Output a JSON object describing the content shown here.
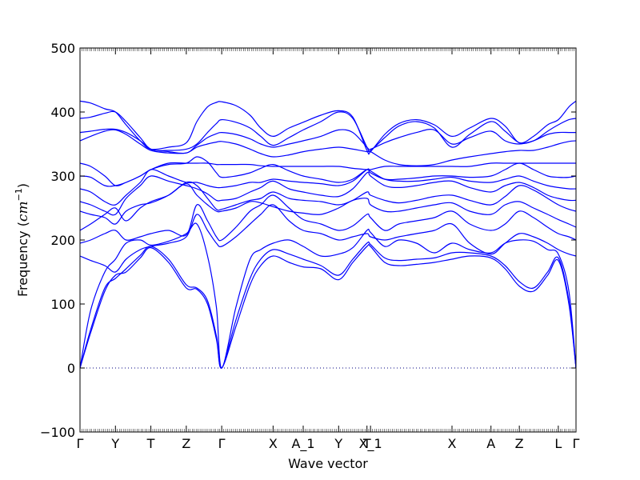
{
  "chart_data": {
    "type": "line",
    "title": "",
    "xlabel": "Wave vector",
    "ylabel_prefix": "Frequency (",
    "ylabel_unit_base": "cm",
    "ylabel_unit_exp": "−1",
    "ylabel_suffix": ")",
    "ylim": [
      -100,
      500
    ],
    "yticks": [
      -100,
      0,
      100,
      200,
      300,
      400,
      500
    ],
    "yticklabels": [
      "−100",
      "0",
      "100",
      "200",
      "300",
      "400",
      "500"
    ],
    "xlim": [
      0,
      14
    ],
    "xticks": [
      {
        "x": 0,
        "label": "Γ"
      },
      {
        "x": 1,
        "label": "Y"
      },
      {
        "x": 2,
        "label": "T"
      },
      {
        "x": 3,
        "label": "Z"
      },
      {
        "x": 4,
        "label": "Γ"
      },
      {
        "x": 5.45,
        "label": "X"
      },
      {
        "x": 6.3,
        "label": "A_1"
      },
      {
        "x": 7.3,
        "label": "Y"
      },
      {
        "x": 8.1,
        "label": "T"
      },
      {
        "x": 8.2,
        "label": "X_1"
      },
      {
        "x": 10.5,
        "label": "X"
      },
      {
        "x": 11.6,
        "label": "A"
      },
      {
        "x": 12.4,
        "label": "Z"
      },
      {
        "x": 13.5,
        "label": "L"
      },
      {
        "x": 14,
        "label": "Γ"
      }
    ],
    "zero_line": true,
    "line_color": "#0000ff",
    "zero_line_color": "#000080",
    "series": [
      {
        "x": [
          0,
          0.3,
          0.7,
          1.0,
          1.3,
          1.7,
          2.0,
          2.5,
          3.0,
          3.3,
          3.6,
          3.85,
          4.0,
          4.4,
          4.8,
          5.1,
          5.45,
          5.9,
          6.3,
          6.8,
          7.3,
          7.7,
          8.1,
          8.2,
          8.6,
          9.0,
          9.5,
          10.0,
          10.5,
          11.0,
          11.6,
          12.0,
          12.4,
          12.8,
          13.2,
          13.5,
          13.8,
          14.0
        ],
        "values": [
          0,
          55,
          120,
          145,
          150,
          172,
          188,
          165,
          125,
          123,
          100,
          45,
          0,
          65,
          130,
          160,
          175,
          165,
          158,
          155,
          138,
          165,
          190,
          190,
          165,
          160,
          162,
          165,
          170,
          175,
          172,
          155,
          128,
          120,
          145,
          168,
          100,
          0
        ]
      },
      {
        "x": [
          0,
          0.3,
          0.7,
          1.0,
          1.3,
          1.7,
          2.0,
          2.5,
          3.0,
          3.3,
          3.6,
          3.85,
          4.0,
          4.4,
          4.8,
          5.1,
          5.45,
          5.9,
          6.3,
          6.8,
          7.3,
          7.7,
          8.1,
          8.2,
          8.6,
          9.0,
          9.5,
          10.0,
          10.5,
          11.0,
          11.6,
          12.0,
          12.4,
          12.8,
          13.2,
          13.5,
          13.8,
          14.0
        ],
        "values": [
          0,
          60,
          125,
          140,
          155,
          176,
          190,
          170,
          130,
          125,
          105,
          50,
          0,
          75,
          140,
          170,
          185,
          178,
          170,
          160,
          145,
          170,
          195,
          193,
          172,
          168,
          170,
          172,
          180,
          180,
          175,
          160,
          135,
          125,
          150,
          172,
          105,
          0
        ]
      },
      {
        "x": [
          0,
          0.3,
          0.7,
          1.0,
          1.3,
          1.7,
          2.0,
          2.5,
          3.0,
          3.3,
          3.6,
          3.85,
          4.0,
          4.4,
          4.8,
          5.1,
          5.45,
          5.9,
          6.3,
          6.8,
          7.3,
          7.7,
          8.1,
          8.2,
          8.6,
          9.0,
          9.5,
          10.0,
          10.5,
          11.0,
          11.6,
          12.0,
          12.4,
          12.8,
          13.2,
          13.5,
          13.8,
          14.0
        ],
        "values": [
          0,
          90,
          150,
          170,
          195,
          200,
          192,
          198,
          210,
          225,
          175,
          95,
          0,
          95,
          170,
          185,
          195,
          200,
          190,
          175,
          178,
          188,
          215,
          212,
          190,
          200,
          195,
          180,
          195,
          185,
          180,
          195,
          200,
          198,
          185,
          178,
          120,
          0
        ]
      },
      {
        "x": [
          0,
          0.3,
          0.7,
          1.0,
          1.3,
          1.7,
          2.0,
          2.5,
          3.0,
          3.3,
          3.6,
          3.85,
          4.0,
          4.4,
          4.8,
          5.1,
          5.45,
          5.9,
          6.3,
          6.8,
          7.3,
          7.7,
          8.1,
          8.2,
          8.6,
          9.0,
          9.5,
          10.0,
          10.5,
          11.0,
          11.6,
          12.0,
          12.4,
          12.8,
          13.2,
          13.5,
          13.8,
          14.0
        ],
        "values": [
          175,
          168,
          160,
          150,
          170,
          185,
          190,
          195,
          205,
          240,
          215,
          195,
          190,
          205,
          225,
          240,
          255,
          230,
          215,
          210,
          200,
          205,
          210,
          205,
          200,
          205,
          210,
          215,
          225,
          195,
          178,
          195,
          210,
          205,
          195,
          185,
          178,
          175
        ]
      },
      {
        "x": [
          0,
          0.3,
          0.7,
          1.0,
          1.3,
          1.7,
          2.0,
          2.5,
          3.0,
          3.3,
          3.6,
          3.85,
          4.0,
          4.4,
          4.8,
          5.1,
          5.45,
          5.9,
          6.3,
          6.8,
          7.3,
          7.7,
          8.1,
          8.2,
          8.6,
          9.0,
          9.5,
          10.0,
          10.5,
          11.0,
          11.6,
          12.0,
          12.4,
          12.8,
          13.2,
          13.5,
          13.8,
          14.0
        ],
        "values": [
          195,
          200,
          210,
          215,
          200,
          205,
          210,
          215,
          208,
          255,
          230,
          205,
          200,
          220,
          245,
          255,
          270,
          250,
          232,
          225,
          215,
          222,
          240,
          235,
          215,
          225,
          230,
          235,
          245,
          225,
          215,
          225,
          245,
          235,
          220,
          210,
          205,
          200
        ]
      },
      {
        "x": [
          0,
          0.3,
          0.7,
          1.0,
          1.3,
          1.7,
          2.0,
          2.5,
          3.0,
          3.3,
          3.6,
          3.85,
          4.0,
          4.4,
          4.8,
          5.1,
          5.45,
          5.9,
          6.3,
          6.8,
          7.3,
          7.7,
          8.1,
          8.2,
          8.6,
          9.0,
          9.5,
          10.0,
          10.5,
          11.0,
          11.6,
          12.0,
          12.4,
          12.8,
          13.2,
          13.5,
          13.8,
          14.0
        ],
        "values": [
          215,
          225,
          240,
          250,
          230,
          250,
          260,
          270,
          288,
          270,
          255,
          245,
          245,
          250,
          260,
          258,
          252,
          245,
          242,
          240,
          250,
          262,
          265,
          255,
          245,
          245,
          250,
          255,
          258,
          245,
          240,
          255,
          260,
          250,
          240,
          232,
          225,
          220
        ]
      },
      {
        "x": [
          0,
          0.3,
          0.7,
          1.0,
          1.3,
          1.7,
          2.0,
          2.5,
          3.0,
          3.3,
          3.6,
          3.85,
          4.0,
          4.4,
          4.8,
          5.1,
          5.45,
          5.9,
          6.3,
          6.8,
          7.3,
          7.7,
          8.1,
          8.2,
          8.6,
          9.0,
          9.5,
          10.0,
          10.5,
          11.0,
          11.6,
          12.0,
          12.4,
          12.8,
          13.2,
          13.5,
          13.8,
          14.0
        ],
        "values": [
          245,
          240,
          235,
          225,
          245,
          255,
          258,
          270,
          290,
          285,
          265,
          248,
          248,
          255,
          262,
          265,
          275,
          265,
          262,
          260,
          255,
          262,
          275,
          270,
          262,
          258,
          262,
          268,
          270,
          262,
          255,
          268,
          285,
          278,
          265,
          255,
          248,
          245
        ]
      },
      {
        "x": [
          0,
          0.3,
          0.7,
          1.0,
          1.3,
          1.7,
          2.0,
          2.5,
          3.0,
          3.3,
          3.6,
          3.85,
          4.0,
          4.4,
          4.8,
          5.1,
          5.45,
          5.9,
          6.3,
          6.8,
          7.3,
          7.7,
          8.1,
          8.2,
          8.6,
          9.0,
          9.5,
          10.0,
          10.5,
          11.0,
          11.6,
          12.0,
          12.4,
          12.8,
          13.2,
          13.5,
          13.8,
          14.0
        ],
        "values": [
          260,
          255,
          245,
          240,
          265,
          285,
          300,
          292,
          285,
          280,
          272,
          262,
          262,
          265,
          275,
          282,
          292,
          280,
          275,
          270,
          268,
          280,
          305,
          300,
          285,
          282,
          285,
          290,
          292,
          282,
          275,
          285,
          290,
          282,
          270,
          265,
          262,
          262
        ]
      },
      {
        "x": [
          0,
          0.3,
          0.7,
          1.0,
          1.3,
          1.7,
          2.0,
          2.5,
          3.0,
          3.3,
          3.6,
          3.85,
          4.0,
          4.4,
          4.8,
          5.1,
          5.45,
          5.9,
          6.3,
          6.8,
          7.3,
          7.7,
          8.1,
          8.2,
          8.6,
          9.0,
          9.5,
          10.0,
          10.5,
          11.0,
          11.6,
          12.0,
          12.4,
          12.8,
          13.2,
          13.5,
          13.8,
          14.0
        ],
        "values": [
          280,
          275,
          260,
          255,
          270,
          290,
          310,
          300,
          290,
          290,
          285,
          282,
          282,
          285,
          290,
          290,
          295,
          292,
          290,
          288,
          285,
          292,
          310,
          308,
          295,
          292,
          292,
          295,
          298,
          292,
          290,
          295,
          300,
          292,
          285,
          282,
          280,
          280
        ]
      },
      {
        "x": [
          0,
          0.3,
          0.7,
          1.0,
          1.3,
          1.7,
          2.0,
          2.5,
          3.0,
          3.3,
          3.6,
          3.85,
          4.0,
          4.4,
          4.8,
          5.1,
          5.45,
          5.9,
          6.3,
          6.8,
          7.3,
          7.7,
          8.1,
          8.2,
          8.6,
          9.0,
          9.5,
          10.0,
          10.5,
          11.0,
          11.6,
          12.0,
          12.4,
          12.8,
          13.2,
          13.5,
          13.8,
          14.0
        ],
        "values": [
          300,
          298,
          285,
          285,
          290,
          300,
          310,
          318,
          320,
          330,
          322,
          305,
          298,
          300,
          305,
          312,
          318,
          308,
          300,
          295,
          290,
          295,
          310,
          305,
          295,
          295,
          297,
          300,
          300,
          298,
          300,
          310,
          320,
          310,
          300,
          298,
          298,
          300
        ]
      },
      {
        "x": [
          0,
          0.3,
          0.7,
          1.0,
          1.3,
          1.7,
          2.0,
          2.5,
          3.0,
          3.3,
          3.6,
          3.85,
          4.0,
          4.4,
          4.8,
          5.1,
          5.45,
          5.9,
          6.3,
          6.8,
          7.3,
          7.7,
          8.1,
          8.2,
          8.6,
          9.0,
          9.5,
          10.0,
          10.5,
          11.0,
          11.6,
          12.0,
          12.4,
          12.8,
          13.2,
          13.5,
          13.8,
          14.0
        ],
        "values": [
          320,
          315,
          300,
          285,
          290,
          300,
          310,
          320,
          320,
          320,
          320,
          318,
          318,
          318,
          318,
          316,
          315,
          315,
          315,
          315,
          315,
          312,
          310,
          310,
          315,
          315,
          315,
          315,
          315,
          315,
          320,
          320,
          320,
          320,
          320,
          320,
          320,
          320
        ]
      },
      {
        "x": [
          0,
          0.3,
          0.7,
          1.0,
          1.3,
          1.7,
          2.0,
          2.5,
          3.0,
          3.3,
          3.6,
          3.85,
          4.0,
          4.4,
          4.8,
          5.1,
          5.45,
          5.9,
          6.3,
          6.8,
          7.3,
          7.7,
          8.1,
          8.2,
          8.6,
          9.0,
          9.5,
          10.0,
          10.5,
          11.0,
          11.6,
          12.0,
          12.4,
          12.8,
          13.2,
          13.5,
          13.8,
          14.0
        ],
        "values": [
          355,
          362,
          370,
          372,
          365,
          350,
          340,
          336,
          336,
          345,
          350,
          353,
          354,
          350,
          342,
          335,
          330,
          333,
          338,
          342,
          345,
          342,
          338,
          338,
          325,
          318,
          316,
          318,
          325,
          330,
          335,
          338,
          340,
          340,
          345,
          350,
          354,
          355
        ]
      },
      {
        "x": [
          0,
          0.3,
          0.7,
          1.0,
          1.3,
          1.7,
          2.0,
          2.5,
          3.0,
          3.3,
          3.6,
          3.85,
          4.0,
          4.4,
          4.8,
          5.1,
          5.45,
          5.9,
          6.3,
          6.8,
          7.3,
          7.7,
          8.1,
          8.2,
          8.6,
          9.0,
          9.5,
          10.0,
          10.5,
          11.0,
          11.6,
          12.0,
          12.4,
          12.8,
          13.2,
          13.5,
          13.8,
          14.0
        ],
        "values": [
          368,
          370,
          373,
          373,
          368,
          355,
          342,
          338,
          336,
          348,
          360,
          366,
          368,
          365,
          358,
          350,
          345,
          350,
          355,
          362,
          372,
          368,
          345,
          342,
          352,
          360,
          368,
          372,
          350,
          360,
          370,
          355,
          350,
          355,
          365,
          368,
          368,
          368
        ]
      },
      {
        "x": [
          0,
          0.3,
          0.7,
          1.0,
          1.3,
          1.7,
          2.0,
          2.5,
          3.0,
          3.3,
          3.6,
          3.85,
          4.0,
          4.4,
          4.8,
          5.1,
          5.45,
          5.9,
          6.3,
          6.8,
          7.3,
          7.7,
          8.1,
          8.2,
          8.6,
          9.0,
          9.5,
          10.0,
          10.5,
          11.0,
          11.6,
          12.0,
          12.4,
          12.8,
          13.2,
          13.5,
          13.8,
          14.0
        ],
        "values": [
          390,
          392,
          398,
          400,
          385,
          360,
          342,
          340,
          342,
          350,
          368,
          382,
          388,
          384,
          375,
          362,
          348,
          360,
          372,
          385,
          400,
          390,
          345,
          340,
          360,
          378,
          385,
          375,
          345,
          365,
          385,
          370,
          352,
          355,
          370,
          380,
          388,
          390
        ]
      },
      {
        "x": [
          0,
          0.3,
          0.7,
          1.0,
          1.3,
          1.7,
          2.0,
          2.5,
          3.0,
          3.3,
          3.6,
          3.85,
          4.0,
          4.4,
          4.8,
          5.1,
          5.45,
          5.9,
          6.3,
          6.8,
          7.3,
          7.7,
          8.1,
          8.2,
          8.6,
          9.0,
          9.5,
          10.0,
          10.5,
          11.0,
          11.6,
          12.0,
          12.4,
          12.8,
          13.2,
          13.5,
          13.8,
          14.0
        ],
        "values": [
          417,
          414,
          405,
          400,
          380,
          355,
          342,
          345,
          352,
          385,
          408,
          415,
          416,
          410,
          395,
          375,
          362,
          375,
          384,
          395,
          402,
          392,
          340,
          338,
          365,
          382,
          388,
          380,
          362,
          375,
          390,
          378,
          352,
          362,
          380,
          388,
          408,
          417
        ]
      }
    ]
  }
}
